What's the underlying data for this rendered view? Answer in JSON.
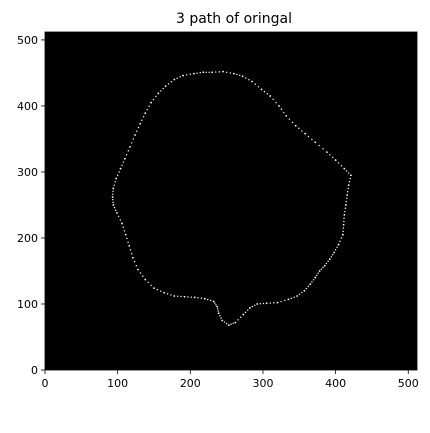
{
  "chart_data": {
    "type": "scatter",
    "title": "3  path of oringal",
    "xlabel": "",
    "ylabel": "",
    "xlim": [
      0,
      512
    ],
    "ylim": [
      0,
      512
    ],
    "x_ticks": [
      0,
      100,
      200,
      300,
      400,
      500
    ],
    "y_ticks": [
      0,
      100,
      200,
      300,
      400,
      500
    ],
    "grid": false,
    "background": "#000000",
    "point_color": "#ffffff",
    "series": [
      {
        "points": [
          [
            230,
            451
          ],
          [
            245,
            452
          ],
          [
            260,
            449
          ],
          [
            272,
            445
          ],
          [
            285,
            437
          ],
          [
            298,
            425
          ],
          [
            310,
            415
          ],
          [
            322,
            400
          ],
          [
            332,
            385
          ],
          [
            345,
            370
          ],
          [
            358,
            358
          ],
          [
            372,
            345
          ],
          [
            388,
            330
          ],
          [
            400,
            318
          ],
          [
            412,
            305
          ],
          [
            421,
            295
          ],
          [
            418,
            280
          ],
          [
            416,
            265
          ],
          [
            414,
            250
          ],
          [
            412,
            235
          ],
          [
            411,
            220
          ],
          [
            410,
            205
          ],
          [
            404,
            190
          ],
          [
            398,
            178
          ],
          [
            392,
            168
          ],
          [
            385,
            158
          ],
          [
            378,
            150
          ],
          [
            372,
            140
          ],
          [
            365,
            130
          ],
          [
            357,
            120
          ],
          [
            347,
            112
          ],
          [
            335,
            107
          ],
          [
            320,
            102
          ],
          [
            305,
            101
          ],
          [
            292,
            100
          ],
          [
            282,
            94
          ],
          [
            273,
            84
          ],
          [
            262,
            72
          ],
          [
            253,
            68
          ],
          [
            244,
            75
          ],
          [
            239,
            86
          ],
          [
            237,
            96
          ],
          [
            232,
            104
          ],
          [
            220,
            108
          ],
          [
            206,
            110
          ],
          [
            192,
            111
          ],
          [
            178,
            112
          ],
          [
            164,
            117
          ],
          [
            150,
            124
          ],
          [
            138,
            137
          ],
          [
            128,
            152
          ],
          [
            121,
            170
          ],
          [
            116,
            188
          ],
          [
            111,
            205
          ],
          [
            106,
            222
          ],
          [
            99,
            238
          ],
          [
            94,
            250
          ],
          [
            93,
            262
          ],
          [
            94,
            275
          ],
          [
            98,
            290
          ],
          [
            104,
            305
          ],
          [
            110,
            320
          ],
          [
            117,
            338
          ],
          [
            124,
            356
          ],
          [
            131,
            373
          ],
          [
            138,
            389
          ],
          [
            146,
            405
          ],
          [
            156,
            419
          ],
          [
            166,
            430
          ],
          [
            178,
            440
          ],
          [
            190,
            446
          ],
          [
            205,
            449
          ],
          [
            218,
            451
          ]
        ]
      }
    ]
  }
}
